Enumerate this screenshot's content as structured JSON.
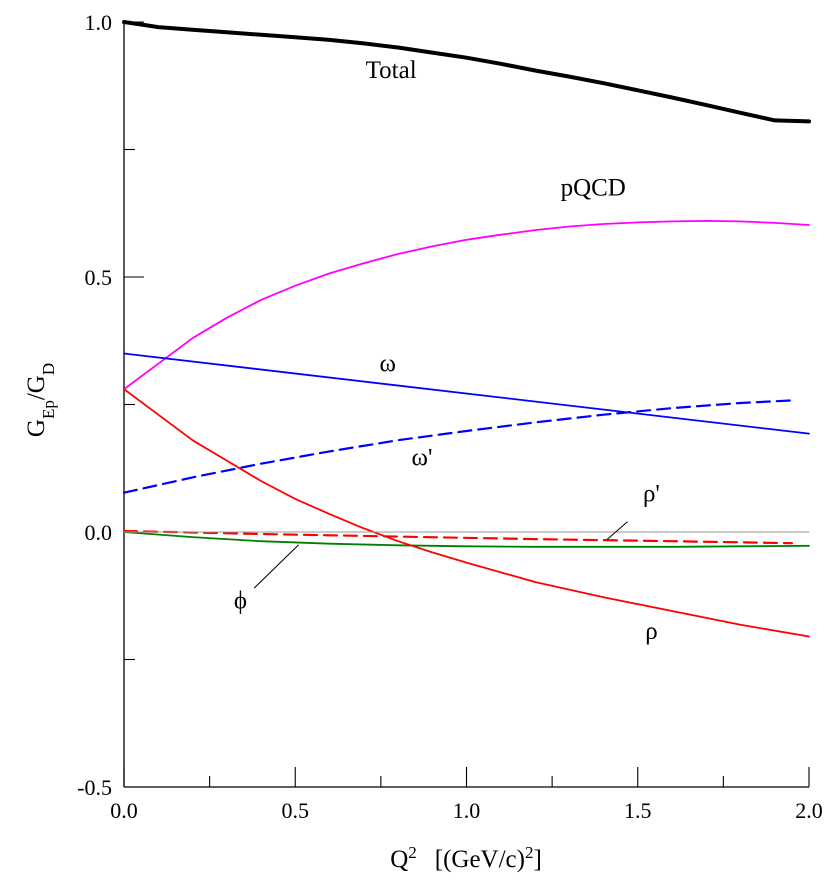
{
  "chart_data": {
    "type": "line",
    "xlabel": "Q² [(GeV/c)²]",
    "ylabel": "G_Ep/G_D",
    "xlim": [
      0.0,
      2.0
    ],
    "ylim": [
      -0.5,
      1.0
    ],
    "x_ticks": [
      "0.0",
      "0.5",
      "1.0",
      "1.5",
      "2.0"
    ],
    "y_ticks": [
      "-0.5",
      "0.0",
      "0.5",
      "1.0"
    ],
    "grid": false,
    "legend": "none (curves labeled directly)",
    "series": [
      {
        "name": "Total",
        "color": "#000000",
        "style": "solid-thick",
        "x": [
          0.0,
          0.05,
          0.1,
          0.2,
          0.3,
          0.4,
          0.5,
          0.6,
          0.7,
          0.8,
          0.9,
          1.0,
          1.1,
          1.2,
          1.3,
          1.4,
          1.5,
          1.6,
          1.7,
          1.8,
          1.9,
          2.0
        ],
        "y": [
          1.0,
          0.995,
          0.99,
          0.985,
          0.98,
          0.975,
          0.97,
          0.965,
          0.958,
          0.95,
          0.94,
          0.93,
          0.918,
          0.905,
          0.893,
          0.88,
          0.866,
          0.852,
          0.837,
          0.822,
          0.807,
          0.805
        ]
      },
      {
        "name": "pQCD",
        "color": "#ff00ff",
        "style": "solid",
        "x": [
          0.0,
          0.1,
          0.2,
          0.3,
          0.4,
          0.5,
          0.6,
          0.7,
          0.8,
          0.9,
          1.0,
          1.1,
          1.2,
          1.3,
          1.4,
          1.5,
          1.6,
          1.7,
          1.8,
          1.9,
          2.0
        ],
        "y": [
          0.28,
          0.33,
          0.38,
          0.42,
          0.455,
          0.483,
          0.507,
          0.527,
          0.545,
          0.56,
          0.573,
          0.583,
          0.592,
          0.599,
          0.604,
          0.607,
          0.609,
          0.61,
          0.609,
          0.606,
          0.602
        ]
      },
      {
        "name": "ω",
        "color": "#0000ff",
        "style": "solid",
        "x": [
          0.0,
          2.0
        ],
        "y": [
          0.35,
          0.193
        ]
      },
      {
        "name": "ω'",
        "color": "#0000ff",
        "style": "dashed",
        "x": [
          0.0,
          0.2,
          0.4,
          0.6,
          0.8,
          1.0,
          1.2,
          1.4,
          1.6,
          1.8,
          1.95
        ],
        "y": [
          0.077,
          0.107,
          0.134,
          0.158,
          0.18,
          0.198,
          0.215,
          0.23,
          0.243,
          0.253,
          0.258
        ]
      },
      {
        "name": "ρ'",
        "color": "#ff0000",
        "style": "dashed",
        "x": [
          0.0,
          0.4,
          0.8,
          1.2,
          1.6,
          1.95
        ],
        "y": [
          0.002,
          -0.004,
          -0.009,
          -0.014,
          -0.018,
          -0.022
        ]
      },
      {
        "name": "ϕ",
        "color": "#008000",
        "style": "solid",
        "x": [
          0.0,
          0.2,
          0.4,
          0.6,
          0.8,
          1.0,
          1.2,
          1.4,
          1.6,
          1.8,
          2.0
        ],
        "y": [
          0.0,
          -0.01,
          -0.018,
          -0.023,
          -0.026,
          -0.028,
          -0.029,
          -0.029,
          -0.029,
          -0.028,
          -0.027
        ]
      },
      {
        "name": "ρ",
        "color": "#ff0000",
        "style": "solid",
        "x": [
          0.0,
          0.1,
          0.2,
          0.3,
          0.4,
          0.5,
          0.6,
          0.7,
          0.8,
          0.9,
          1.0,
          1.2,
          1.4,
          1.6,
          1.8,
          2.0
        ],
        "y": [
          0.28,
          0.23,
          0.18,
          0.14,
          0.1,
          0.065,
          0.035,
          0.007,
          -0.018,
          -0.04,
          -0.06,
          -0.098,
          -0.128,
          -0.155,
          -0.182,
          -0.205
        ]
      },
      {
        "name": "",
        "color": "#999999",
        "style": "thin-reference",
        "x": [
          0.0,
          2.0
        ],
        "y": [
          0.0,
          0.0
        ]
      }
    ],
    "annotations": [
      {
        "text": "Total",
        "x": 0.78,
        "y": 0.89
      },
      {
        "text": "pQCD",
        "x": 1.37,
        "y": 0.66
      },
      {
        "text": "ω",
        "x": 0.77,
        "y": 0.315
      },
      {
        "text": "ω'",
        "x": 0.87,
        "y": 0.13
      },
      {
        "text": "ρ'",
        "x": 1.54,
        "y": 0.06
      },
      {
        "text": "ϕ",
        "x": 0.34,
        "y": -0.15
      },
      {
        "text": "ρ",
        "x": 1.54,
        "y": -0.21
      }
    ]
  },
  "text": {
    "ylabel_main": "G",
    "ylabel_sub1": "Ep",
    "ylabel_mid": "/G",
    "ylabel_sub2": "D",
    "xlabel_main": "Q",
    "xlabel_sup1": "2",
    "xlabel_unit": "[(GeV/c)",
    "xlabel_sup2": "2",
    "xlabel_close": "]"
  }
}
